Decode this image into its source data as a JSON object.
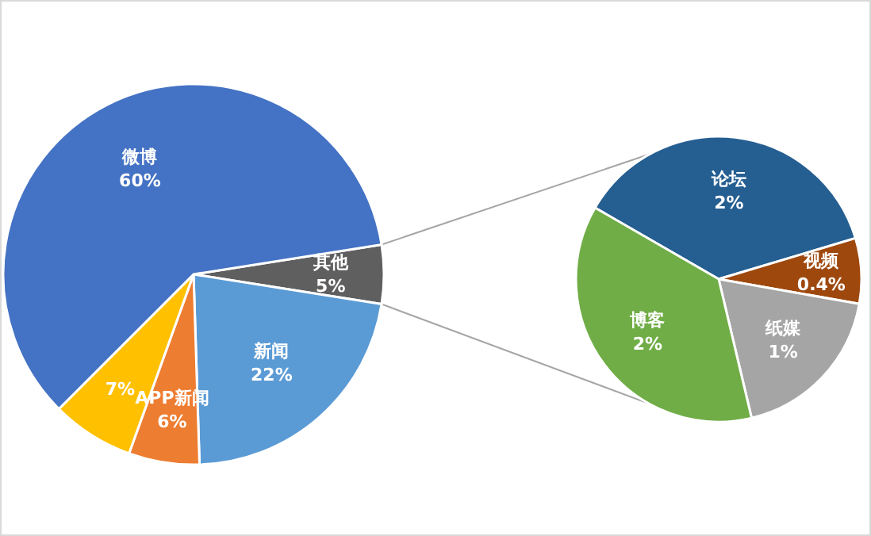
{
  "chart_data": [
    {
      "type": "pie",
      "categories": [
        "其他",
        "新闻",
        "APP新闻",
        null,
        "微博"
      ],
      "values": [
        5,
        22,
        6,
        7,
        60
      ],
      "value_labels": [
        "5%",
        "22%",
        "6%",
        "7%",
        "60%"
      ],
      "colors": [
        "#5f5f5f",
        "#5b9bd5",
        "#ed7d31",
        "#ffc000",
        "#4472c4"
      ]
    },
    {
      "type": "pie",
      "categories": [
        "论坛",
        "视频",
        "纸媒",
        "博客"
      ],
      "values": [
        2,
        0.4,
        1,
        2
      ],
      "value_labels": [
        "2%",
        "0.4%",
        "1%",
        "2%"
      ],
      "colors": [
        "#255e91",
        "#9e480e",
        "#a5a5a5",
        "#70ad47"
      ]
    }
  ]
}
